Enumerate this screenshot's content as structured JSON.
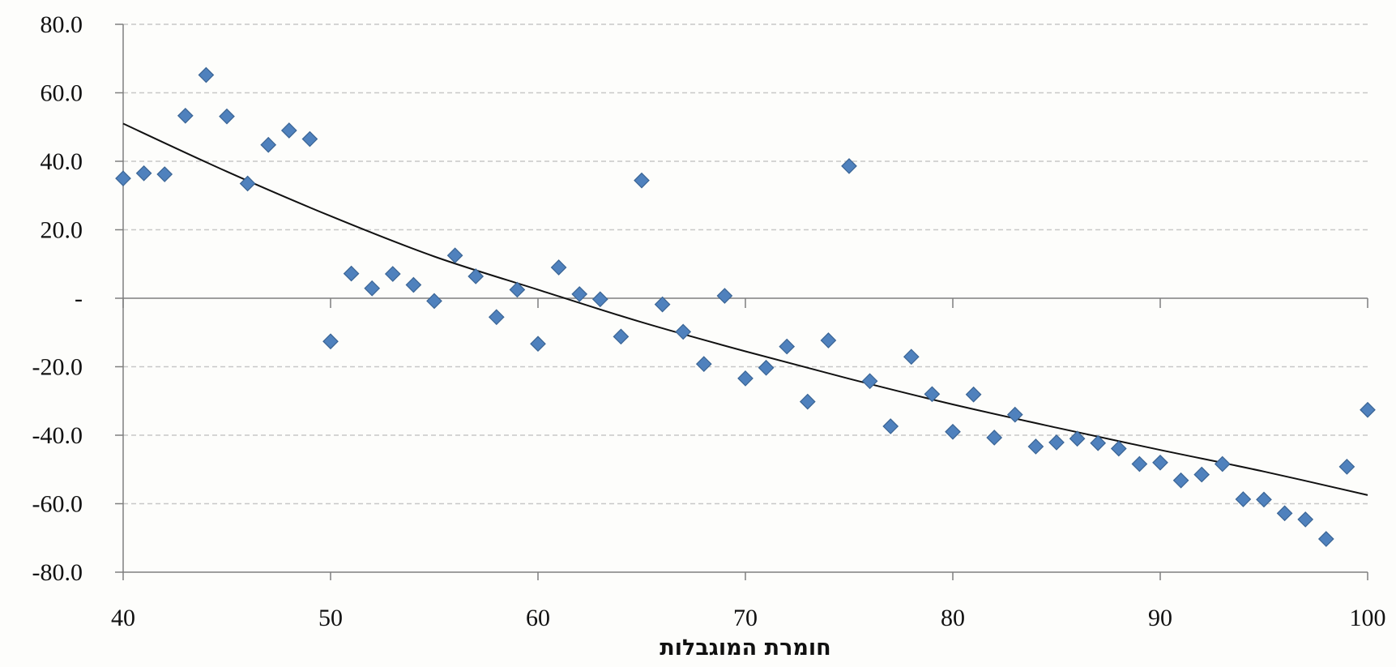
{
  "chart_data": {
    "type": "scatter",
    "title": "",
    "xlabel": "חומרת המוגבלות",
    "ylabel": "",
    "xlim": [
      40,
      100
    ],
    "ylim": [
      -80,
      80
    ],
    "grid": "horizontal-dashed",
    "legend": "none",
    "x_ticks": [
      40,
      50,
      60,
      70,
      80,
      90,
      100
    ],
    "x_tick_labels": [
      "40",
      "50",
      "60",
      "70",
      "80",
      "90",
      "100"
    ],
    "y_ticks": [
      80,
      60,
      40,
      20,
      0,
      -20,
      -40,
      -60,
      -80
    ],
    "y_tick_labels": [
      "80.0",
      "60.0",
      "40.0",
      "20.0",
      "-",
      "-20.0",
      "-40.0",
      "-60.0",
      "-80.0"
    ],
    "marker_color": "#4f81bd",
    "marker_edge_color": "#3a6494",
    "trend_color": "#111111",
    "series": [
      {
        "x": [
          40,
          41,
          42,
          43,
          44,
          45,
          46,
          47,
          48,
          49,
          50,
          51,
          52,
          53,
          54,
          55,
          56,
          57,
          58,
          59,
          60,
          61,
          62,
          63,
          64,
          65,
          66,
          67,
          68,
          69,
          70,
          71,
          72,
          73,
          74,
          75,
          76,
          77,
          78,
          79,
          80,
          81,
          82,
          83,
          84,
          85,
          86,
          87,
          88,
          89,
          90,
          91,
          92,
          93,
          94,
          95,
          96,
          97,
          98,
          99,
          100
        ],
        "y": [
          35.0,
          36.5,
          36.2,
          53.3,
          65.2,
          53.1,
          33.5,
          44.8,
          49.0,
          46.5,
          -12.6,
          7.2,
          2.9,
          7.1,
          3.9,
          -0.8,
          12.5,
          6.4,
          -5.5,
          2.5,
          -13.3,
          9.0,
          1.2,
          -0.3,
          -11.2,
          34.4,
          -1.8,
          -9.8,
          -19.2,
          0.7,
          -23.4,
          -20.3,
          -14.1,
          -30.2,
          -12.3,
          38.6,
          -24.2,
          -37.4,
          -17.1,
          -28.0,
          -39.0,
          -28.1,
          -40.7,
          -34.0,
          -43.3,
          -42.1,
          -41.0,
          -42.3,
          -43.9,
          -48.4,
          -48.0,
          -53.2,
          -51.5,
          -48.4,
          -58.7,
          -58.8,
          -62.8,
          -64.6,
          -70.3,
          -49.2,
          -32.6
        ]
      }
    ],
    "trendline": {
      "type": "polynomial",
      "x": [
        40,
        45,
        50,
        55,
        60,
        65,
        70,
        75,
        80,
        85,
        90,
        95,
        100
      ],
      "y": [
        51.0,
        37.0,
        24.0,
        12.2,
        2.5,
        -7.0,
        -15.5,
        -23.5,
        -31.0,
        -37.8,
        -44.3,
        -50.6,
        -57.5
      ]
    }
  }
}
